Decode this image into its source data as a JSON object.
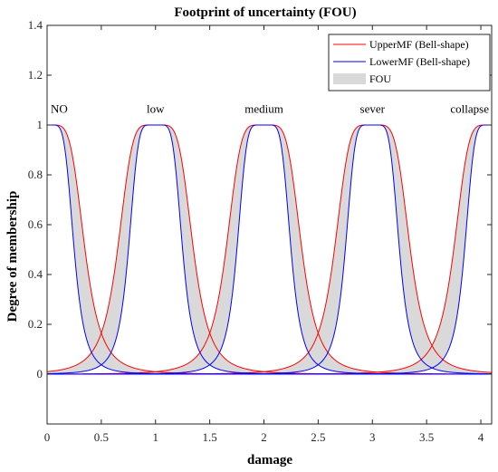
{
  "chart_data": {
    "type": "area",
    "title": "Footprint of uncertainty (FOU)",
    "xlabel": "damage",
    "ylabel": "Degree of membership",
    "xlim": [
      0,
      4.1
    ],
    "ylim": [
      -0.2,
      1.4
    ],
    "xticks": [
      "0",
      "0.5",
      "1",
      "1.5",
      "2",
      "2.5",
      "3",
      "3.5",
      "4"
    ],
    "yticks": [
      "0",
      "0.2",
      "0.4",
      "0.6",
      "0.8",
      "1",
      "1.2",
      "1.4"
    ],
    "grid": false,
    "legend_position": "top-right",
    "membership_functions": [
      {
        "label": "NO",
        "center": 0
      },
      {
        "label": "low",
        "center": 1
      },
      {
        "label": "medium",
        "center": 2
      },
      {
        "label": "sever",
        "center": 3
      },
      {
        "label": "collapse",
        "center": 4.1
      }
    ],
    "upper_mf": {
      "a": 0.3,
      "b": 2,
      "plateau": 0.05
    },
    "lower_mf": {
      "a": 0.2,
      "b": 2,
      "plateau": 0.05
    },
    "series": [
      {
        "name": "UpperMF (Bell-shape)",
        "color": "#ff0000",
        "style": "line"
      },
      {
        "name": "LowerMF (Bell-shape)",
        "color": "#0000ff",
        "style": "line"
      },
      {
        "name": "FOU",
        "color": "#d9d9d9",
        "style": "area"
      }
    ]
  }
}
